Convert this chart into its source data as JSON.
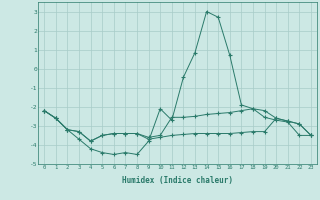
{
  "xlabel": "Humidex (Indice chaleur)",
  "ylabel": "",
  "x": [
    0,
    1,
    2,
    3,
    4,
    5,
    6,
    7,
    8,
    9,
    10,
    11,
    12,
    13,
    14,
    15,
    16,
    17,
    18,
    19,
    20,
    21,
    22,
    23
  ],
  "line1": [
    -2.2,
    -2.6,
    -3.2,
    -3.7,
    -4.2,
    -4.4,
    -4.5,
    -4.4,
    -4.5,
    -3.8,
    -2.1,
    -2.7,
    -0.45,
    0.85,
    3.0,
    2.7,
    0.7,
    -1.9,
    -2.1,
    -2.55,
    -2.7,
    -2.8,
    -3.5,
    -3.5
  ],
  "line2": [
    -2.2,
    -2.6,
    -3.2,
    -3.3,
    -3.8,
    -3.5,
    -3.4,
    -3.4,
    -3.4,
    -3.6,
    -3.5,
    -2.55,
    -2.55,
    -2.5,
    -2.4,
    -2.35,
    -2.3,
    -2.2,
    -2.1,
    -2.2,
    -2.6,
    -2.75,
    -2.9,
    -3.5
  ],
  "line3": [
    -2.2,
    -2.6,
    -3.2,
    -3.3,
    -3.8,
    -3.5,
    -3.4,
    -3.4,
    -3.4,
    -3.7,
    -3.6,
    -3.5,
    -3.45,
    -3.4,
    -3.4,
    -3.4,
    -3.4,
    -3.35,
    -3.3,
    -3.3,
    -2.6,
    -2.75,
    -2.9,
    -3.5
  ],
  "line_color": "#2a7a6a",
  "bg_color": "#cce8e4",
  "grid_color": "#a8ccc8",
  "ylim": [
    -5,
    3.5
  ],
  "xlim": [
    -0.5,
    23.5
  ],
  "yticks": [
    -5,
    -4,
    -3,
    -2,
    -1,
    0,
    1,
    2,
    3
  ],
  "xticks": [
    0,
    1,
    2,
    3,
    4,
    5,
    6,
    7,
    8,
    9,
    10,
    11,
    12,
    13,
    14,
    15,
    16,
    17,
    18,
    19,
    20,
    21,
    22,
    23
  ]
}
